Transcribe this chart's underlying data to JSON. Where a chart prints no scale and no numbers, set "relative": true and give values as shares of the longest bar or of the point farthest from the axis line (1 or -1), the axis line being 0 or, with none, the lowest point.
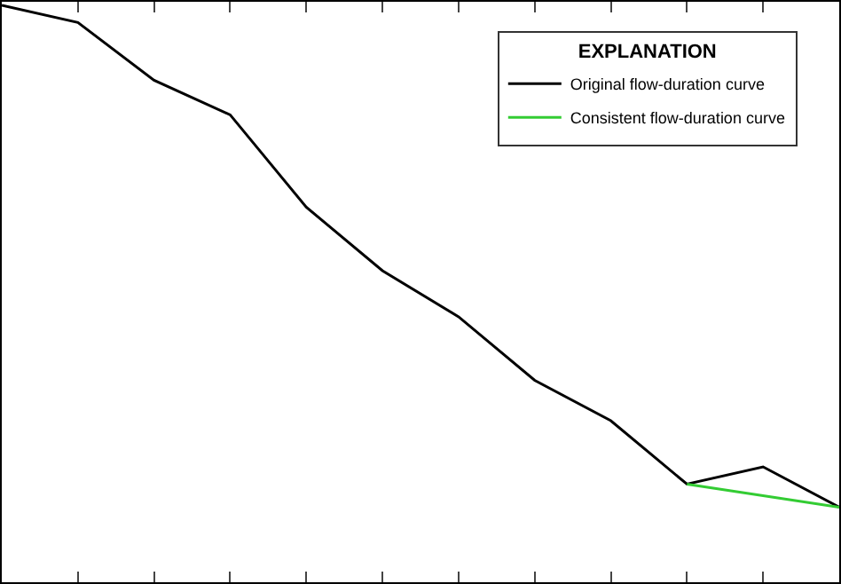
{
  "chart_data": {
    "type": "line",
    "relative": true,
    "categories": [
      null,
      null,
      null,
      null,
      null,
      null,
      null,
      null,
      null,
      null,
      null,
      null
    ],
    "legend_title": "EXPLANATION",
    "legend": "top right",
    "series": [
      {
        "name": "Original flow-duration curve",
        "color": "#000000",
        "values": [
          1,
          0.97,
          0.87,
          0.81,
          0.65,
          0.54,
          0.46,
          0.35,
          0.28,
          0.17,
          0.2,
          0.13
        ]
      },
      {
        "name": "Consistent flow-duration curve",
        "color": "#33cc33",
        "values": [
          null,
          null,
          null,
          null,
          null,
          null,
          null,
          null,
          null,
          0.17,
          0.15,
          0.13
        ]
      }
    ]
  }
}
